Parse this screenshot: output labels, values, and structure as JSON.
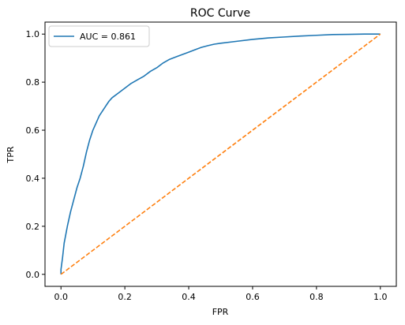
{
  "chart_data": {
    "type": "line",
    "title": "ROC Curve",
    "xlabel": "FPR",
    "ylabel": "TPR",
    "xlim": [
      -0.05,
      1.05
    ],
    "ylim": [
      -0.05,
      1.05
    ],
    "xticks": [
      0.0,
      0.2,
      0.4,
      0.6,
      0.8,
      1.0
    ],
    "xtick_labels": [
      "0.0",
      "0.2",
      "0.4",
      "0.6",
      "0.8",
      "1.0"
    ],
    "yticks": [
      0.0,
      0.2,
      0.4,
      0.6,
      0.8,
      1.0
    ],
    "ytick_labels": [
      "0.0",
      "0.2",
      "0.4",
      "0.6",
      "0.8",
      "1.0"
    ],
    "grid": false,
    "legend": {
      "placement": "top-left",
      "entries": [
        "AUC = 0.861"
      ]
    },
    "series": [
      {
        "name": "AUC = 0.861",
        "color": "#1f77b4",
        "style": "solid",
        "x": [
          0.0,
          0.0,
          0.005,
          0.01,
          0.02,
          0.03,
          0.04,
          0.05,
          0.06,
          0.07,
          0.08,
          0.09,
          0.1,
          0.11,
          0.12,
          0.13,
          0.14,
          0.15,
          0.16,
          0.18,
          0.2,
          0.22,
          0.24,
          0.26,
          0.28,
          0.3,
          0.32,
          0.34,
          0.36,
          0.38,
          0.4,
          0.42,
          0.44,
          0.46,
          0.48,
          0.5,
          0.55,
          0.6,
          0.65,
          0.7,
          0.75,
          0.8,
          0.85,
          0.9,
          0.95,
          1.0
        ],
        "y": [
          0.0,
          0.02,
          0.07,
          0.13,
          0.2,
          0.26,
          0.31,
          0.36,
          0.4,
          0.45,
          0.51,
          0.56,
          0.6,
          0.63,
          0.66,
          0.68,
          0.7,
          0.72,
          0.735,
          0.755,
          0.775,
          0.795,
          0.81,
          0.825,
          0.845,
          0.86,
          0.88,
          0.895,
          0.905,
          0.915,
          0.925,
          0.935,
          0.945,
          0.952,
          0.958,
          0.962,
          0.97,
          0.978,
          0.984,
          0.988,
          0.992,
          0.995,
          0.998,
          0.999,
          1.0,
          1.0
        ]
      },
      {
        "name": "",
        "color": "#ff7f0e",
        "style": "dashed",
        "x": [
          0.0,
          1.0
        ],
        "y": [
          0.0,
          1.0
        ]
      }
    ]
  }
}
